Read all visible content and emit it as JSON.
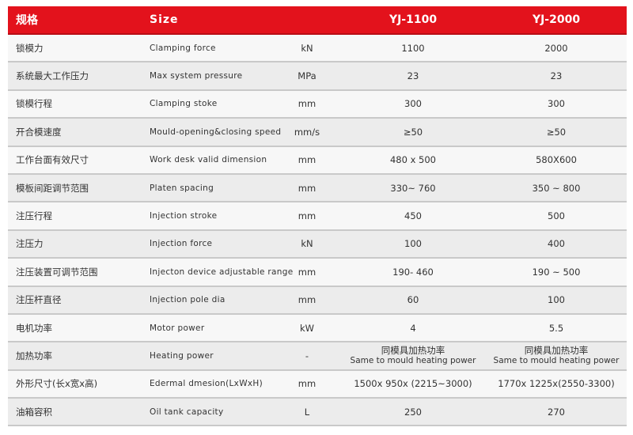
{
  "header": {
    "cn": "规格",
    "en": "Size",
    "unit": "",
    "a": "YJ-1100",
    "b": "YJ-2000"
  },
  "rows": [
    {
      "cn": "锁模力",
      "en": "Clamping force",
      "unit": "kN",
      "a": "1100",
      "b": "2000"
    },
    {
      "cn": "系统最大工作压力",
      "en": "Max system pressure",
      "unit": "MPa",
      "a": "23",
      "b": "23"
    },
    {
      "cn": "锁模行程",
      "en": "Clamping stoke",
      "unit": "mm",
      "a": "300",
      "b": "300"
    },
    {
      "cn": "开合模速度",
      "en": "Mould-opening&closing speed",
      "unit": "mm/s",
      "a": "≥50",
      "b": "≥50"
    },
    {
      "cn": "工作台面有效尺寸",
      "en": "Work desk valid dimension",
      "unit": "mm",
      "a": "480 x 500",
      "b": "580X600"
    },
    {
      "cn": "模板间距调节范围",
      "en": "Platen spacing",
      "unit": "mm",
      "a": "330~ 760",
      "b": "350 ~ 800"
    },
    {
      "cn": "注压行程",
      "en": "Injection stroke",
      "unit": "mm",
      "a": "450",
      "b": "500"
    },
    {
      "cn": "注压力",
      "en": "Injection force",
      "unit": "kN",
      "a": "100",
      "b": "400"
    },
    {
      "cn": "注压装置可调节范围",
      "en": "Injecton device adjustable range",
      "unit": "mm",
      "a": "190- 460",
      "b": "190 ~ 500"
    },
    {
      "cn": "注压杆直径",
      "en": "Injection pole dia",
      "unit": "mm",
      "a": "60",
      "b": "100"
    },
    {
      "cn": "电机功率",
      "en": "Motor power",
      "unit": "kW",
      "a": "4",
      "b": "5.5"
    },
    {
      "cn": "加热功率",
      "en": "Heating power",
      "unit": "-",
      "a": "同模具加热功率",
      "a_sub": "Same to mould heating power",
      "b": "同模具加热功率",
      "b_sub": "Same to mould heating power"
    },
    {
      "cn": "外形尺寸(长x宽x高)",
      "en": "Edermal dmesion(LxWxH)",
      "unit": "mm",
      "a": "1500x 950x (2215~3000)",
      "b": "1770x 1225x(2550-3300)"
    },
    {
      "cn": "油箱容积",
      "en": "Oil tank capacity",
      "unit": "L",
      "a": "250",
      "b": "270"
    }
  ],
  "colors": {
    "header_bg": "#e3121c",
    "row_light": "#f7f7f7",
    "row_dark": "#ececec"
  }
}
